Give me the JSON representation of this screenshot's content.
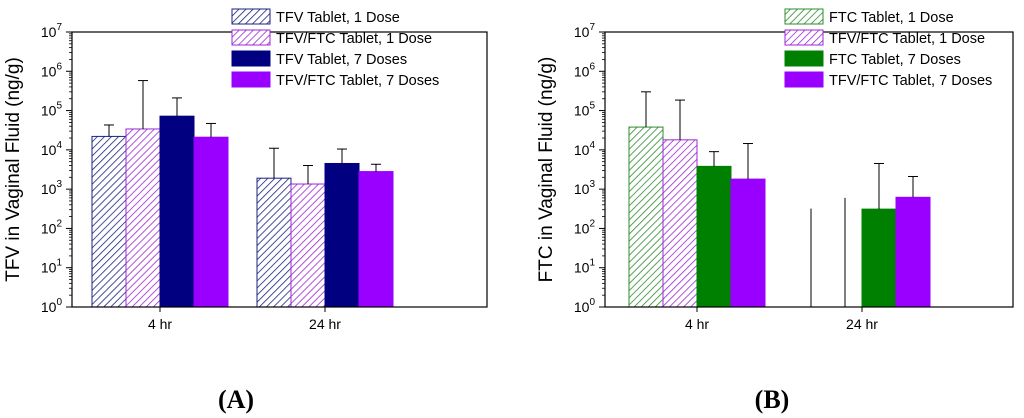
{
  "chart_data": [
    {
      "type": "bar",
      "panel_label": "(A)",
      "ylabel": "TFV in Vaginal Fluid (ng/g)",
      "yscale": "log",
      "ylim": [
        1,
        10000000
      ],
      "yticks": [
        {
          "base": "10",
          "exp": "0",
          "value": 1
        },
        {
          "base": "10",
          "exp": "1",
          "value": 10
        },
        {
          "base": "10",
          "exp": "2",
          "value": 100
        },
        {
          "base": "10",
          "exp": "3",
          "value": 1000
        },
        {
          "base": "10",
          "exp": "4",
          "value": 10000
        },
        {
          "base": "10",
          "exp": "5",
          "value": 100000
        },
        {
          "base": "10",
          "exp": "6",
          "value": 1000000
        },
        {
          "base": "10",
          "exp": "7",
          "value": 10000000
        }
      ],
      "categories": [
        "4 hr",
        "24 hr"
      ],
      "legend_position": "top-right",
      "series": [
        {
          "name": "TFV Tablet, 1 Dose",
          "color": "#1a237e",
          "pattern": "hatch",
          "values": [
            22000,
            1900
          ],
          "error_upper": [
            43000,
            11000
          ]
        },
        {
          "name": "TFV/FTC Tablet, 1 Dose",
          "color": "#9c27d6",
          "pattern": "hatch",
          "values": [
            34000,
            1350
          ],
          "error_upper": [
            580000,
            4000
          ]
        },
        {
          "name": "TFV Tablet, 7 Doses",
          "color": "#000080",
          "pattern": "solid",
          "values": [
            72000,
            4500
          ],
          "error_upper": [
            210000,
            10500
          ]
        },
        {
          "name": "TFV/FTC Tablet, 7 Doses",
          "color": "#9900ff",
          "pattern": "solid",
          "values": [
            21000,
            2800
          ],
          "error_upper": [
            47000,
            4300
          ]
        }
      ]
    },
    {
      "type": "bar",
      "panel_label": "(B)",
      "ylabel": "FTC in Vaginal Fluid (ng/g)",
      "yscale": "log",
      "ylim": [
        1,
        10000000
      ],
      "yticks": [
        {
          "base": "10",
          "exp": "0",
          "value": 1
        },
        {
          "base": "10",
          "exp": "1",
          "value": 10
        },
        {
          "base": "10",
          "exp": "2",
          "value": 100
        },
        {
          "base": "10",
          "exp": "3",
          "value": 1000
        },
        {
          "base": "10",
          "exp": "4",
          "value": 10000
        },
        {
          "base": "10",
          "exp": "5",
          "value": 100000
        },
        {
          "base": "10",
          "exp": "6",
          "value": 1000000
        },
        {
          "base": "10",
          "exp": "7",
          "value": 10000000
        }
      ],
      "categories": [
        "4 hr",
        "24 hr"
      ],
      "legend_position": "top-right",
      "series": [
        {
          "name": "FTC Tablet, 1 Dose",
          "color": "#2e8b2e",
          "pattern": "hatch",
          "values": [
            38000,
            null
          ],
          "error_upper": [
            300000,
            320
          ]
        },
        {
          "name": "TFV/FTC Tablet, 1 Dose",
          "color": "#9c27d6",
          "pattern": "hatch",
          "values": [
            18000,
            null
          ],
          "error_upper": [
            185000,
            600
          ]
        },
        {
          "name": "FTC Tablet, 7 Doses",
          "color": "#008000",
          "pattern": "solid",
          "values": [
            3800,
            310
          ],
          "error_upper": [
            9000,
            4500
          ]
        },
        {
          "name": "TFV/FTC Tablet, 7 Doses",
          "color": "#9900ff",
          "pattern": "solid",
          "values": [
            1800,
            620
          ],
          "error_upper": [
            14500,
            2100
          ]
        }
      ]
    }
  ]
}
